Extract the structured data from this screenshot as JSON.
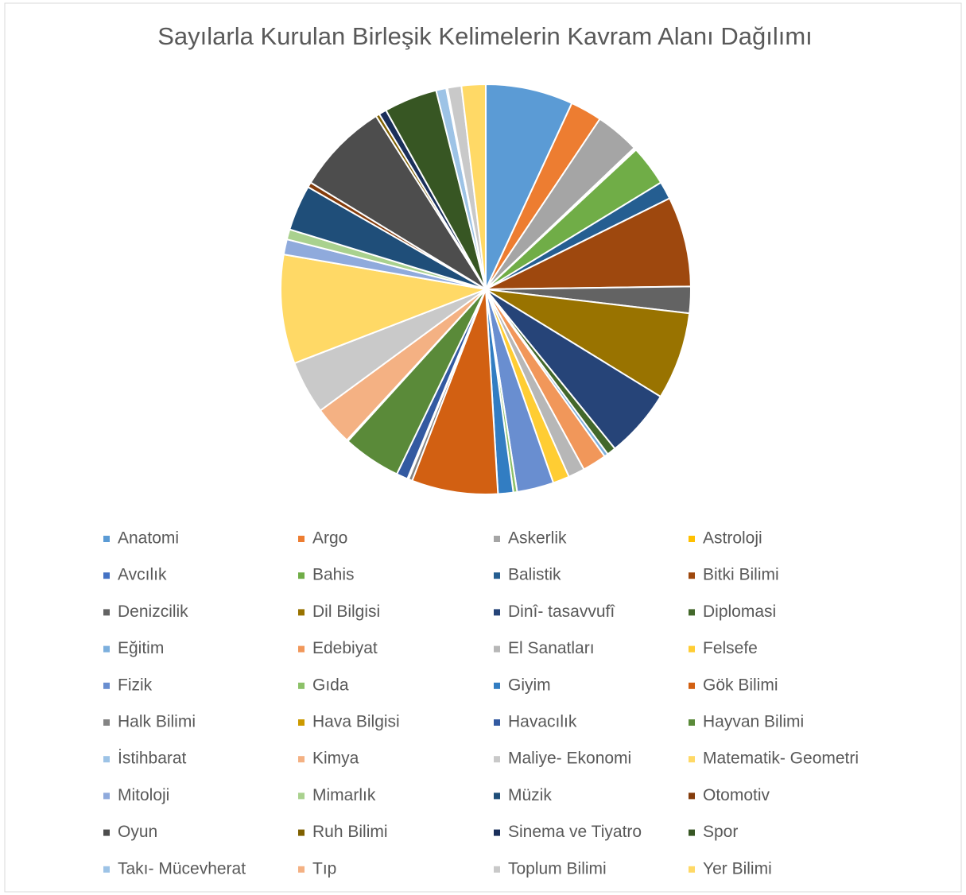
{
  "chart_data": {
    "type": "pie",
    "title": "Sayılarla Kurulan Birleşik Kelimelerin Kavram Alanı Dağılımı",
    "categories": [
      "Anatomi",
      "Argo",
      "Askerlik",
      "Astroloji",
      "Avcılık",
      "Bahis",
      "Balistik",
      "Bitki Bilimi",
      "Denizcilik",
      "Dil Bilgisi",
      "Dinî- tasavvufî",
      "Diplomasi",
      "Eğitim",
      "Edebiyat",
      "El Sanatları",
      "Felsefe",
      "Fizik",
      "Gıda",
      "Giyim",
      "Gök Bilimi",
      "Halk Bilimi",
      "Hava Bilgisi",
      "Havacılık",
      "Hayvan Bilimi",
      "İstihbarat",
      "Kimya",
      "Maliye- Ekonomi",
      "Matematik- Geometri",
      "Mitoloji",
      "Mimarlık",
      "Müzik",
      "Otomotiv",
      "Oyun",
      "Ruh Bilimi",
      "Sinema ve Tiyatro",
      "Spor",
      "Takı- Mücevherat",
      "Tıp",
      "Toplum Bilimi",
      "Yer Bilimi"
    ],
    "values": [
      6.9,
      2.5,
      3.5,
      0.1,
      0.1,
      3.2,
      1.4,
      7.1,
      2.1,
      6.9,
      5.4,
      0.7,
      0.3,
      1.9,
      1.3,
      1.3,
      2.9,
      0.3,
      1.2,
      6.8,
      0.3,
      0.1,
      0.9,
      4.6,
      0.1,
      3.1,
      4.2,
      8.6,
      1.2,
      0.8,
      3.6,
      0.4,
      7.3,
      0.3,
      0.6,
      4.2,
      0.8,
      0.1,
      1.1,
      1.9
    ],
    "colors": [
      "#5b9bd5",
      "#ed7d31",
      "#a5a5a5",
      "#ffc000",
      "#4472c4",
      "#70ad47",
      "#255e91",
      "#9e480e",
      "#636363",
      "#997300",
      "#264478",
      "#43682b",
      "#7cafdd",
      "#f1975a",
      "#b7b7b7",
      "#ffcd33",
      "#698ed0",
      "#8cc168",
      "#327dc2",
      "#d26012",
      "#848484",
      "#cc9a00",
      "#335aa1",
      "#5a8a39",
      "#9dc3e6",
      "#f4b183",
      "#c9c9c9",
      "#ffd966",
      "#8faadc",
      "#a9d18e",
      "#1f4e79",
      "#843c0c",
      "#4d4d4d",
      "#7f6000",
      "#1a2f5a",
      "#375623",
      "#9dc3e6",
      "#f4b183",
      "#c9c9c9",
      "#ffd966"
    ],
    "legend": "bottom"
  }
}
